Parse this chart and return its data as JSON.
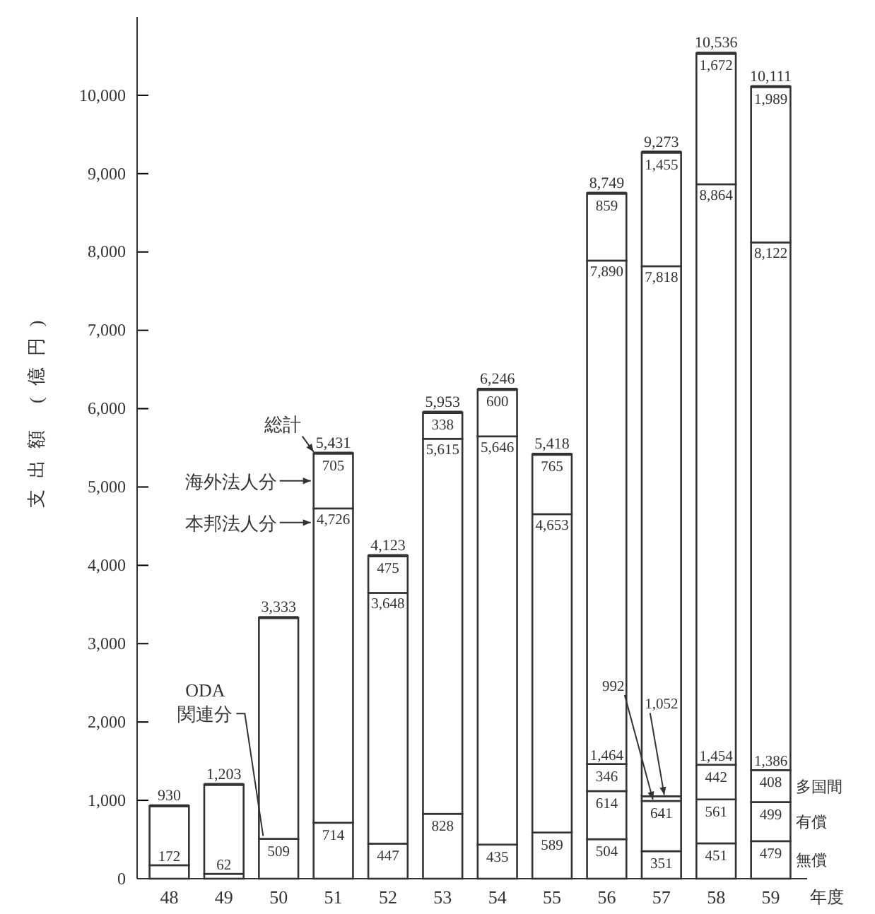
{
  "chart_data": {
    "type": "bar",
    "stacked": true,
    "ylabel": "支出額 (億円)",
    "xlabel": "年度",
    "legend": "left",
    "categories": [
      "48",
      "49",
      "50",
      "51",
      "52",
      "53",
      "54",
      "55",
      "56",
      "57",
      "58",
      "59"
    ],
    "ylim": [
      0,
      11000
    ],
    "yticks": [
      0,
      {
        "value": 1000,
        "label": "1,000"
      },
      {
        "value": 2000,
        "label": "2,000"
      },
      {
        "value": 3000,
        "label": "3,000"
      },
      {
        "value": 4000,
        "label": "4,000"
      },
      {
        "value": 5000,
        "label": "5,000"
      },
      {
        "value": 6000,
        "label": "6,000"
      },
      {
        "value": 7000,
        "label": "7,000"
      },
      {
        "value": 8000,
        "label": "8,000"
      },
      {
        "value": 9000,
        "label": "9,000"
      },
      {
        "value": 10000,
        "label": "10,000"
      }
    ],
    "series": [
      {
        "name": "ODA関連分",
        "color": "#ffffff",
        "values": [
          172,
          62,
          509,
          714,
          447,
          828,
          435,
          589,
          null,
          null,
          null,
          null
        ],
        "value_labels": [
          "172",
          "62",
          "509",
          "714",
          "447",
          "828",
          "435",
          "589",
          null,
          null,
          null,
          null
        ]
      },
      {
        "name": "無償",
        "color": "#ffffff",
        "values": [
          null,
          null,
          null,
          null,
          null,
          null,
          null,
          null,
          504,
          351,
          451,
          479
        ],
        "value_labels": [
          null,
          null,
          null,
          null,
          null,
          null,
          null,
          null,
          "504",
          "351",
          "451",
          "479"
        ]
      },
      {
        "name": "有償",
        "color": "#ffffff",
        "values": [
          null,
          null,
          null,
          null,
          null,
          null,
          null,
          null,
          614,
          641,
          561,
          499
        ],
        "value_labels": [
          null,
          null,
          null,
          null,
          null,
          null,
          null,
          null,
          "614",
          "641",
          "561",
          "499"
        ]
      },
      {
        "name": "多国間",
        "color": "#ffffff",
        "values": [
          null,
          null,
          null,
          null,
          null,
          null,
          null,
          null,
          346,
          60,
          442,
          408
        ],
        "value_labels": [
          null,
          null,
          null,
          null,
          null,
          null,
          null,
          null,
          "346",
          null,
          "442",
          "408"
        ]
      },
      {
        "name": "本邦法人分",
        "color": "#ffffff",
        "values": [
          758,
          1141,
          2824,
          4012,
          3201,
          4787,
          5211,
          4064,
          6426,
          6766,
          7410,
          6736
        ]
      },
      {
        "name": "海外法人分",
        "color": "#ffffff",
        "values": [
          null,
          null,
          null,
          705,
          475,
          338,
          600,
          765,
          859,
          1455,
          1672,
          1989
        ],
        "value_labels": [
          null,
          null,
          null,
          "705",
          "475",
          "338",
          "600",
          "765",
          "859",
          "1,455",
          "1,672",
          "1,989"
        ]
      }
    ],
    "totals": [
      "930",
      "1,203",
      "3,333",
      "5,431",
      "4,123",
      "5,953",
      "6,246",
      "5,418",
      "8,749",
      "9,273",
      "10,536",
      "10,111"
    ],
    "annotations": [
      {
        "text": "総計",
        "x": "51",
        "y": 5431
      },
      {
        "text": "4,726",
        "x": "51",
        "y": 4726
      },
      {
        "text": "3,648",
        "x": "52",
        "y": 3648
      },
      {
        "text": "5,615",
        "x": "53",
        "y": 5615
      },
      {
        "text": "5,646",
        "x": "54",
        "y": 5646
      },
      {
        "text": "4,653",
        "x": "55",
        "y": 4653
      },
      {
        "text": "7,890",
        "x": "56",
        "y": 7890
      },
      {
        "text": "7,818",
        "x": "57",
        "y": 7818
      },
      {
        "text": "8,864",
        "x": "58",
        "y": 8864
      },
      {
        "text": "8,122",
        "x": "59",
        "y": 8122
      },
      {
        "text": "1,464",
        "x": "56",
        "y": 1464
      },
      {
        "text": "992",
        "x": "57",
        "y": 992
      },
      {
        "text": "1,052",
        "x": "57",
        "y": 1052
      },
      {
        "text": "1,454",
        "x": "58",
        "y": 1454
      },
      {
        "text": "1,386",
        "x": "59",
        "y": 1386
      }
    ]
  }
}
